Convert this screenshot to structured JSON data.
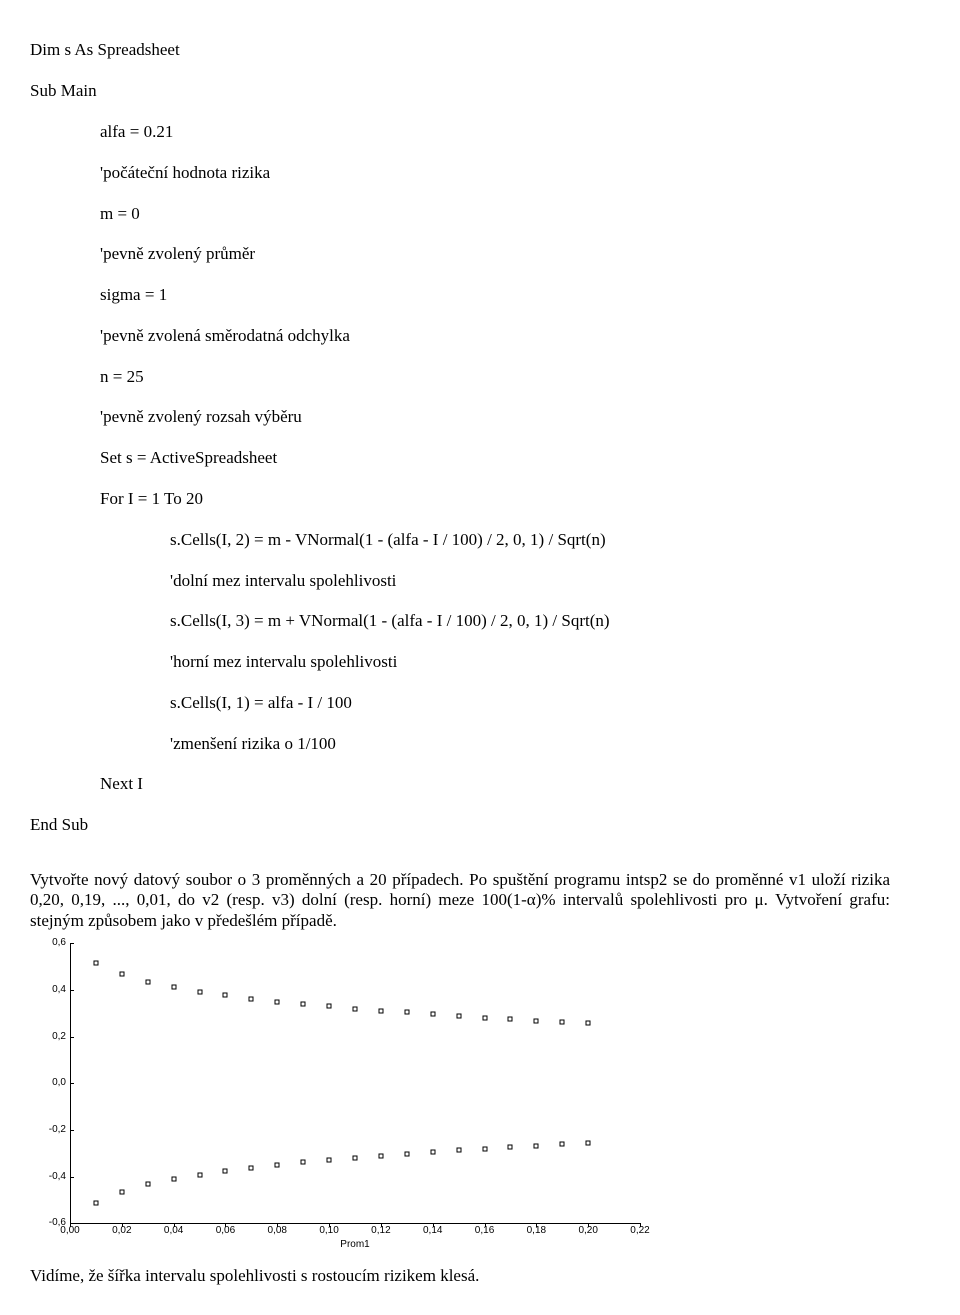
{
  "code": {
    "l1": "Dim s As Spreadsheet",
    "l2": "Sub Main",
    "l3": "alfa = 0.21",
    "l4": "'počáteční hodnota rizika",
    "l5": "m = 0",
    "l6": "'pevně zvolený průměr",
    "l7": "sigma = 1",
    "l8": "'pevně zvolená směrodatná odchylka",
    "l9": "n = 25",
    "l10": "'pevně zvolený rozsah výběru",
    "l11": "Set s = ActiveSpreadsheet",
    "l12": "For I = 1 To 20",
    "l13": "s.Cells(I, 2) = m - VNormal(1 - (alfa - I / 100) / 2, 0, 1) / Sqrt(n)",
    "l14": "'dolní mez intervalu spolehlivosti",
    "l15": "s.Cells(I, 3) = m + VNormal(1 - (alfa - I / 100) / 2, 0, 1) / Sqrt(n)",
    "l16": "'horní mez intervalu spolehlivosti",
    "l17": "s.Cells(I, 1) = alfa - I / 100",
    "l18": "'zmenšení rizika o 1/100",
    "l19": "Next I",
    "l20": "End Sub"
  },
  "para1": "Vytvořte nový datový soubor o 3 proměnných a 20 případech. Po spuštění programu intsp2 se do proměnné v1 uloží rizika 0,20, 0,19, ..., 0,01, do v2 (resp. v3) dolní (resp. horní) meze 100(1-α)% intervalů spolehlivosti pro μ. Vytvoření grafu: stejným způsobem jako v předešlém případě.",
  "para2": "Vidíme, že šířka intervalu spolehlivosti s rostoucím rizikem klesá.",
  "chart": {
    "type": "scatter",
    "xlabel": "Prom1",
    "xlim": [
      0.0,
      0.22
    ],
    "ylim": [
      -0.6,
      0.6
    ],
    "xticks": [
      "0,00",
      "0,02",
      "0,04",
      "0,06",
      "0,08",
      "0,10",
      "0,12",
      "0,14",
      "0,16",
      "0,18",
      "0,20",
      "0,22"
    ],
    "xtick_vals": [
      0.0,
      0.02,
      0.04,
      0.06,
      0.08,
      0.1,
      0.12,
      0.14,
      0.16,
      0.18,
      0.2,
      0.22
    ],
    "yticks": [
      "-0,6",
      "-0,4",
      "-0,2",
      "0,0",
      "0,2",
      "0,4",
      "0,6"
    ],
    "ytick_vals": [
      -0.6,
      -0.4,
      -0.2,
      0.0,
      0.2,
      0.4,
      0.6
    ],
    "series_upper": {
      "x": [
        0.01,
        0.02,
        0.03,
        0.04,
        0.05,
        0.06,
        0.07,
        0.08,
        0.09,
        0.1,
        0.11,
        0.12,
        0.13,
        0.14,
        0.15,
        0.16,
        0.17,
        0.18,
        0.19,
        0.2
      ],
      "y": [
        0.515,
        0.466,
        0.434,
        0.411,
        0.392,
        0.376,
        0.362,
        0.35,
        0.339,
        0.329,
        0.32,
        0.311,
        0.303,
        0.295,
        0.288,
        0.281,
        0.274,
        0.268,
        0.262,
        0.256
      ]
    },
    "series_lower": {
      "x": [
        0.01,
        0.02,
        0.03,
        0.04,
        0.05,
        0.06,
        0.07,
        0.08,
        0.09,
        0.1,
        0.11,
        0.12,
        0.13,
        0.14,
        0.15,
        0.16,
        0.17,
        0.18,
        0.19,
        0.2
      ],
      "y": [
        -0.515,
        -0.466,
        -0.434,
        -0.411,
        -0.392,
        -0.376,
        -0.362,
        -0.35,
        -0.339,
        -0.329,
        -0.32,
        -0.311,
        -0.303,
        -0.295,
        -0.288,
        -0.281,
        -0.274,
        -0.268,
        -0.262,
        -0.256
      ]
    },
    "marker_style": "hollow-square",
    "marker_size": 5,
    "background_color": "#ffffff",
    "axis_color": "#000000",
    "tick_fontsize": 10,
    "label_fontsize": 10
  }
}
